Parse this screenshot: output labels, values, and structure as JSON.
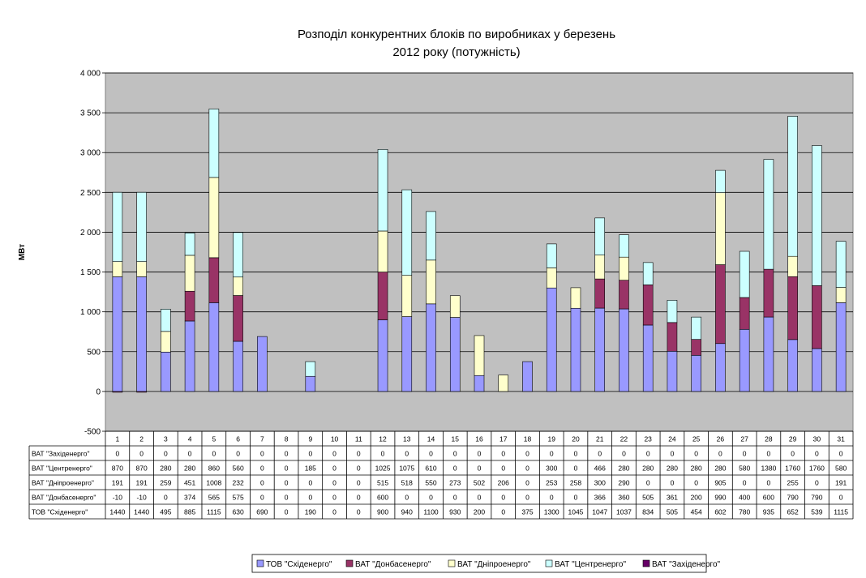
{
  "chart_data": {
    "type": "bar",
    "stacked": true,
    "title": [
      "Розподіл конкурентних блоків по виробниках у березень",
      "2012 року (потужність)"
    ],
    "ylabel": "МВт",
    "ylim": [
      -500,
      4000
    ],
    "yticks": [
      -500,
      0,
      500,
      1000,
      1500,
      2000,
      2500,
      3000,
      3500,
      4000
    ],
    "ytick_labels": [
      "-500",
      "0",
      "500",
      "1 000",
      "1 500",
      "2 000",
      "2 500",
      "3 000",
      "3 500",
      "4 000"
    ],
    "grid": true,
    "plot_background": "#c0c0c0",
    "legend_position": "bottom",
    "categories": [
      "1",
      "2",
      "3",
      "4",
      "5",
      "6",
      "7",
      "8",
      "9",
      "10",
      "11",
      "12",
      "13",
      "14",
      "15",
      "16",
      "17",
      "18",
      "19",
      "20",
      "21",
      "22",
      "23",
      "24",
      "25",
      "26",
      "27",
      "28",
      "29",
      "30",
      "31"
    ],
    "series": [
      {
        "name": "ТОВ \"Східенерго\"",
        "color": "#9999ff",
        "values": [
          1440,
          1440,
          495,
          885,
          1115,
          630,
          690,
          0,
          190,
          0,
          0,
          900,
          940,
          1100,
          930,
          200,
          0,
          375,
          1300,
          1045,
          1047,
          1037,
          834,
          505,
          454,
          602,
          780,
          935,
          652,
          539,
          1115
        ]
      },
      {
        "name": "ВАТ \"Донбасенерго\"",
        "color": "#993366",
        "values": [
          -10,
          -10,
          0,
          374,
          565,
          575,
          0,
          0,
          0,
          0,
          0,
          600,
          0,
          0,
          0,
          0,
          0,
          0,
          0,
          0,
          366,
          360,
          505,
          361,
          200,
          990,
          400,
          600,
          790,
          790,
          0
        ]
      },
      {
        "name": "ВАТ \"Дніпроенерго\"",
        "color": "#ffffcc",
        "values": [
          191,
          191,
          259,
          451,
          1008,
          232,
          0,
          0,
          0,
          0,
          0,
          515,
          518,
          550,
          273,
          502,
          206,
          0,
          253,
          258,
          300,
          290,
          0,
          0,
          0,
          905,
          0,
          0,
          255,
          0,
          191
        ]
      },
      {
        "name": "ВАТ \"Центренерго\"",
        "color": "#ccffff",
        "values": [
          870,
          870,
          280,
          280,
          860,
          560,
          0,
          0,
          185,
          0,
          0,
          1025,
          1075,
          610,
          0,
          0,
          0,
          0,
          300,
          0,
          466,
          280,
          280,
          280,
          280,
          280,
          580,
          1380,
          1760,
          1760,
          580
        ]
      },
      {
        "name": "ВАТ \"Західенерго\"",
        "color": "#660066",
        "values": [
          0,
          0,
          0,
          0,
          0,
          0,
          0,
          0,
          0,
          0,
          0,
          0,
          0,
          0,
          0,
          0,
          0,
          0,
          0,
          0,
          0,
          0,
          0,
          0,
          0,
          0,
          0,
          0,
          0,
          0,
          0
        ]
      }
    ],
    "table_row_order": [
      4,
      3,
      2,
      1,
      0
    ],
    "table_row_labels": [
      "ВАТ \"Західенерго\"",
      "ВАТ \"Центренерго\"",
      "ВАТ \"Дніпроенерго\"",
      "ВАТ \"Донбасенерго\"",
      "ТОВ \"Східенерго\""
    ]
  }
}
